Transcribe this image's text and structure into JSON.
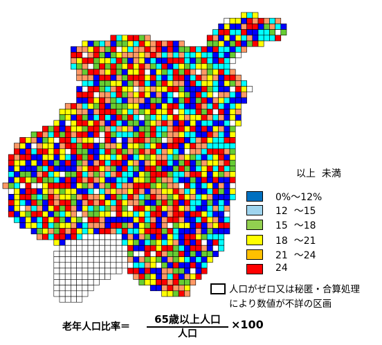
{
  "legend": {
    "header": "以上  未満",
    "classes": [
      {
        "label": "0%～12%",
        "color": "#0070c0"
      },
      {
        "label": "12  ～15",
        "color": "#9fd4ee"
      },
      {
        "label": "15  ～18",
        "color": "#92d050"
      },
      {
        "label": "18  ～21",
        "color": "#ffff00"
      },
      {
        "label": "21  ～24",
        "color": "#ffc000"
      },
      {
        "label": "24",
        "color": "#ff0000"
      }
    ],
    "nodata_line1": "人口がゼロ又は秘匿・合算処理",
    "nodata_line2": "により数値が不詳の区画"
  },
  "formula": {
    "left": "老年人口比率＝",
    "numerator": "65歳以上人口",
    "denominator": "人口",
    "right": "×100"
  },
  "map_palette": {
    "cells": [
      "#0000ff",
      "#00ffff",
      "#66cc33",
      "#ffff00",
      "#ff9966",
      "#ff0000",
      "#ffffff"
    ]
  }
}
